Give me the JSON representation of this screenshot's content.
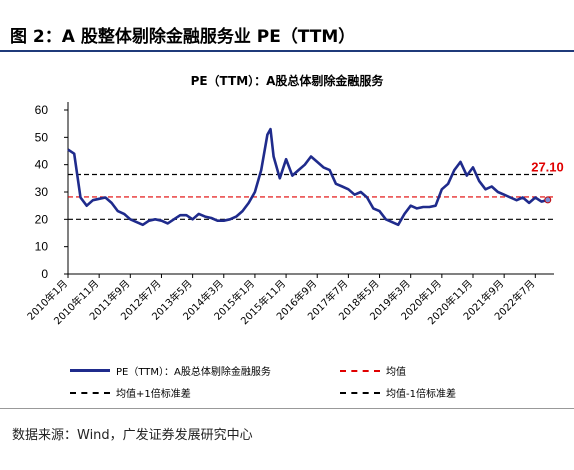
{
  "figure": {
    "title": "图 2：A 股整体剔除金融服务业 PE（TTM）"
  },
  "source": "数据来源：Wind，广发证券发展研究中心",
  "colors": {
    "series": "#1f2b8c",
    "mean": "#e00000",
    "band": "#000000",
    "header_rule": "#1f3a7a"
  },
  "chart_data": {
    "type": "line",
    "title": "PE（TTM）：A股总体剔除金融服务",
    "xlabel": "",
    "ylabel": "",
    "ylim": [
      0,
      60
    ],
    "yticks": [
      0,
      10,
      20,
      30,
      40,
      50,
      60
    ],
    "xlim": [
      "2010-01",
      "2023-01"
    ],
    "xtick_labels": [
      "2010年1月",
      "2010年11月",
      "2011年9月",
      "2012年7月",
      "2013年5月",
      "2014年3月",
      "2015年1月",
      "2015年11月",
      "2016年9月",
      "2017年7月",
      "2018年5月",
      "2019年3月",
      "2020年1月",
      "2020年11月",
      "2021年9月",
      "2022年7月"
    ],
    "grid": false,
    "legend_position": "bottom",
    "series": [
      {
        "name": "PE（TTM）：A股总体剔除金融服务",
        "style": "solid",
        "x": [
          "2010-01",
          "2010-03",
          "2010-05",
          "2010-07",
          "2010-09",
          "2010-11",
          "2011-01",
          "2011-03",
          "2011-05",
          "2011-07",
          "2011-09",
          "2011-11",
          "2012-01",
          "2012-03",
          "2012-05",
          "2012-07",
          "2012-09",
          "2012-11",
          "2013-01",
          "2013-03",
          "2013-05",
          "2013-07",
          "2013-09",
          "2013-11",
          "2014-01",
          "2014-03",
          "2014-05",
          "2014-07",
          "2014-09",
          "2014-11",
          "2015-01",
          "2015-03",
          "2015-05",
          "2015-06",
          "2015-07",
          "2015-09",
          "2015-11",
          "2016-01",
          "2016-03",
          "2016-05",
          "2016-07",
          "2016-09",
          "2016-11",
          "2017-01",
          "2017-03",
          "2017-05",
          "2017-07",
          "2017-09",
          "2017-11",
          "2018-01",
          "2018-03",
          "2018-05",
          "2018-07",
          "2018-09",
          "2018-11",
          "2019-01",
          "2019-03",
          "2019-05",
          "2019-07",
          "2019-09",
          "2019-11",
          "2020-01",
          "2020-03",
          "2020-05",
          "2020-07",
          "2020-09",
          "2020-11",
          "2021-01",
          "2021-03",
          "2021-05",
          "2021-07",
          "2021-09",
          "2021-11",
          "2022-01",
          "2022-03",
          "2022-05",
          "2022-07",
          "2022-09",
          "2022-11"
        ],
        "values": [
          45.5,
          44,
          28,
          25,
          27,
          27.5,
          28,
          26,
          23,
          22,
          20,
          19,
          18,
          19.5,
          20,
          19.5,
          18.5,
          20,
          21.5,
          21.5,
          20,
          22,
          21,
          20.5,
          19.5,
          19.5,
          20,
          21,
          23,
          26,
          30,
          38,
          51,
          53,
          43,
          35,
          42,
          36,
          38,
          40,
          43,
          41,
          39,
          38,
          33,
          32,
          31,
          29,
          30,
          28,
          24,
          23,
          20,
          19,
          18,
          22,
          25,
          24,
          24.5,
          24.5,
          25,
          31,
          33,
          38,
          41,
          36,
          39,
          34,
          31,
          32,
          30,
          29,
          28,
          27,
          28,
          26,
          28,
          26.5,
          27.1
        ]
      },
      {
        "name": "均值",
        "style": "dashed",
        "value": 28.2
      },
      {
        "name": "均值+1倍标准差",
        "style": "dashed",
        "value": 36.4
      },
      {
        "name": "均值-1倍标准差",
        "style": "dashed",
        "value": 20.0
      }
    ],
    "annotations": [
      {
        "text": "27.10",
        "x": "2022-11",
        "y": 27.1
      }
    ]
  }
}
